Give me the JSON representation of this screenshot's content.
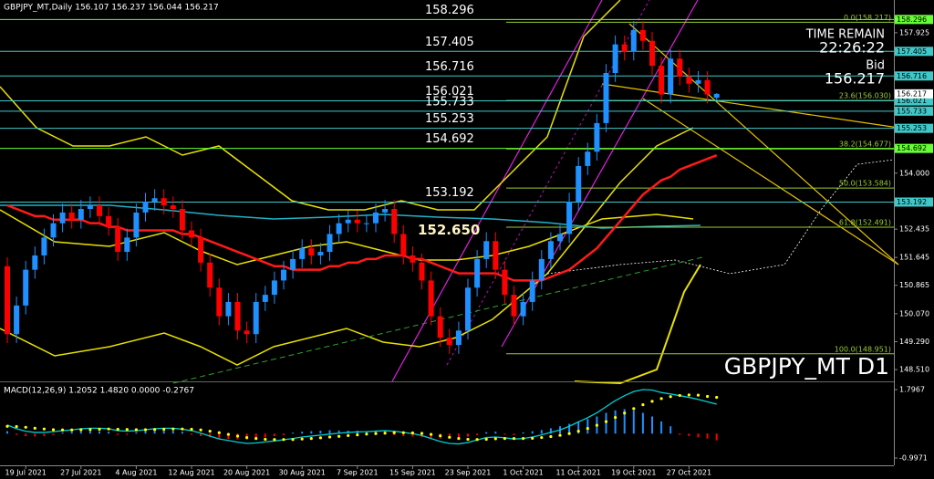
{
  "chart_data": [
    {
      "type": "candlestick",
      "title": "GBPJPY_MT,Daily  156.107 156.237 156.044 156.217",
      "watermark": "GBPJPY_MT D1",
      "time_remain_label": "TIME REMAIN",
      "time_remain": "22:26:22",
      "bid_label": "Bid",
      "bid": 156.217,
      "ylim": [
        148.18,
        158.84
      ],
      "yticks": [
        {
          "value": 157.925,
          "label": "157.925"
        },
        {
          "value": 154.0,
          "label": "154.000"
        },
        {
          "value": 152.435,
          "label": "152.435"
        },
        {
          "value": 151.645,
          "label": "151.645"
        },
        {
          "value": 150.865,
          "label": "150.865"
        },
        {
          "value": 150.07,
          "label": "150.070"
        },
        {
          "value": 149.29,
          "label": "149.290"
        },
        {
          "value": 148.51,
          "label": "148.510"
        }
      ],
      "categories": [
        null,
        null,
        "19 Jul 2021",
        null,
        null,
        null,
        null,
        null,
        "27 Jul 2021",
        null,
        null,
        null,
        null,
        null,
        "4 Aug 2021",
        null,
        null,
        null,
        null,
        null,
        "12 Aug 2021",
        null,
        null,
        null,
        null,
        null,
        "20 Aug 2021",
        null,
        null,
        null,
        null,
        null,
        "30 Aug 2021",
        null,
        null,
        null,
        null,
        null,
        "7 Sep 2021",
        null,
        null,
        null,
        null,
        null,
        "15 Sep 2021",
        null,
        null,
        null,
        null,
        null,
        "23 Sep 2021",
        null,
        null,
        null,
        null,
        null,
        "1 Oct 2021",
        null,
        null,
        null,
        null,
        null,
        "11 Oct 2021",
        null,
        null,
        null,
        null,
        null,
        "19 Oct 2021",
        null,
        null,
        null,
        null,
        null,
        "27 Oct 2021",
        null,
        null,
        null
      ],
      "open": [
        151.4,
        149.5,
        150.3,
        151.3,
        151.7,
        152.2,
        152.6,
        152.9,
        152.7,
        153.0,
        153.1,
        152.8,
        152.5,
        151.8,
        152.2,
        152.9,
        153.2,
        153.3,
        153.1,
        153.0,
        152.4,
        152.2,
        151.5,
        150.8,
        150.0,
        150.4,
        149.6,
        149.5,
        150.4,
        150.6,
        151.0,
        151.3,
        151.6,
        151.9,
        151.7,
        151.8,
        152.3,
        152.6,
        152.7,
        152.6,
        152.6,
        152.9,
        153.0,
        152.3,
        151.7,
        151.5,
        151.0,
        150.0,
        149.4,
        149.2,
        149.6,
        150.8,
        151.6,
        152.1,
        151.3,
        150.6,
        150.0,
        150.4,
        151.0,
        151.6,
        152.1,
        152.3,
        153.2,
        154.2,
        154.6,
        155.4,
        156.8,
        157.6,
        157.4,
        158.0,
        157.7,
        157.0,
        156.2,
        157.2,
        156.7,
        156.5,
        156.6,
        156.107
      ],
      "high": [
        151.65,
        150.55,
        151.55,
        151.95,
        152.45,
        152.85,
        153.15,
        153.15,
        153.25,
        153.35,
        153.35,
        153.05,
        152.75,
        152.45,
        153.15,
        153.45,
        153.55,
        153.55,
        153.35,
        153.25,
        152.65,
        152.45,
        151.75,
        151.05,
        150.65,
        150.65,
        149.85,
        150.65,
        150.85,
        151.25,
        151.55,
        151.85,
        152.15,
        152.15,
        152.05,
        152.55,
        152.85,
        152.95,
        152.95,
        152.85,
        153.15,
        153.25,
        153.25,
        152.55,
        151.95,
        151.75,
        151.25,
        150.25,
        149.65,
        149.85,
        151.05,
        151.85,
        152.35,
        152.35,
        151.55,
        150.85,
        150.65,
        151.25,
        151.85,
        152.35,
        152.55,
        153.45,
        154.45,
        154.85,
        155.65,
        157.05,
        157.85,
        157.85,
        158.25,
        158.25,
        157.95,
        157.25,
        157.45,
        157.45,
        156.95,
        156.85,
        156.85,
        156.237
      ],
      "low": [
        149.25,
        149.25,
        150.05,
        151.05,
        151.45,
        151.95,
        152.35,
        152.45,
        152.45,
        152.75,
        152.55,
        152.25,
        151.55,
        151.55,
        151.95,
        152.65,
        152.95,
        152.85,
        152.75,
        152.15,
        151.95,
        151.25,
        150.55,
        149.75,
        149.75,
        149.35,
        149.25,
        149.25,
        150.15,
        150.35,
        150.75,
        151.05,
        151.35,
        151.45,
        151.45,
        151.55,
        152.05,
        152.35,
        152.35,
        152.35,
        152.35,
        152.65,
        152.05,
        151.45,
        151.25,
        150.75,
        149.75,
        149.15,
        148.95,
        148.95,
        149.35,
        150.55,
        151.35,
        151.05,
        150.35,
        149.75,
        149.75,
        150.15,
        150.75,
        151.35,
        151.85,
        152.05,
        152.95,
        153.95,
        154.35,
        155.15,
        156.55,
        157.15,
        157.15,
        157.45,
        156.75,
        155.95,
        155.95,
        156.45,
        156.25,
        156.25,
        155.95,
        156.044
      ],
      "close": [
        149.5,
        150.3,
        151.3,
        151.7,
        152.2,
        152.6,
        152.9,
        152.7,
        153.0,
        153.1,
        152.8,
        152.5,
        151.8,
        152.2,
        152.9,
        153.2,
        153.3,
        153.1,
        153.0,
        152.4,
        152.2,
        151.5,
        150.8,
        150.0,
        150.4,
        149.6,
        149.5,
        150.4,
        150.6,
        151.0,
        151.3,
        151.6,
        151.9,
        151.7,
        151.8,
        152.3,
        152.6,
        152.7,
        152.6,
        152.6,
        152.9,
        153.0,
        152.3,
        151.7,
        151.5,
        151.0,
        150.0,
        149.4,
        149.2,
        149.6,
        150.8,
        151.6,
        152.1,
        151.3,
        150.6,
        150.0,
        150.4,
        151.0,
        151.6,
        152.1,
        152.3,
        153.2,
        154.2,
        154.6,
        155.4,
        156.8,
        157.6,
        157.4,
        158.0,
        157.7,
        157.0,
        156.2,
        157.2,
        156.7,
        156.5,
        156.6,
        156.2,
        156.217
      ],
      "up_color": "#1e90ff",
      "down_color": "#ff0000",
      "moving_average": {
        "color": "#ff1a1a",
        "values": [
          153.1,
          153.0,
          152.9,
          152.8,
          152.8,
          152.7,
          152.7,
          152.7,
          152.7,
          152.6,
          152.6,
          152.5,
          152.5,
          152.4,
          152.4,
          152.4,
          152.4,
          152.4,
          152.4,
          152.3,
          152.3,
          152.2,
          152.1,
          152.0,
          151.9,
          151.8,
          151.7,
          151.6,
          151.5,
          151.4,
          151.4,
          151.3,
          151.3,
          151.3,
          151.3,
          151.4,
          151.4,
          151.5,
          151.5,
          151.6,
          151.6,
          151.7,
          151.7,
          151.7,
          151.6,
          151.6,
          151.5,
          151.4,
          151.3,
          151.2,
          151.2,
          151.2,
          151.2,
          151.2,
          151.1,
          151.0,
          151.0,
          151.0,
          151.0,
          151.1,
          151.2,
          151.3,
          151.5,
          151.7,
          151.9,
          152.2,
          152.5,
          152.8,
          153.1,
          153.4,
          153.6,
          153.8,
          153.9,
          154.1,
          154.2,
          154.3,
          154.4,
          154.5
        ]
      },
      "levels": [
        158.296,
        157.405,
        156.716,
        156.021,
        155.733,
        155.253,
        154.692,
        153.192
      ],
      "level_colors": [
        "#66ff33",
        "#40c8c8",
        "#40c8c8",
        "#40c8c8",
        "#40c8c8",
        "#40c8c8",
        "#66ff33",
        "#40c8c8"
      ],
      "marker_level": {
        "value": 152.65,
        "label": "152.650"
      },
      "fibo_color": "#9acd32",
      "fibo": [
        {
          "value": 158.217,
          "label": "0.0(158.217)"
        },
        {
          "value": 156.03,
          "label": "23.6(156.030)"
        },
        {
          "value": 154.677,
          "label": "38.2(154.677)"
        },
        {
          "value": 153.584,
          "label": "50.0(153.584)"
        },
        {
          "value": 152.491,
          "label": "61.8(152.491)"
        },
        {
          "value": 148.951,
          "label": "100.0(148.951)"
        }
      ]
    },
    {
      "type": "macd",
      "title": "MACD(12,26,9) 1.2052 1.4820 0.0000 -0.2767",
      "ylim": [
        -1.22,
        2.06
      ],
      "yticks": [
        1.7967,
        -0.9971
      ],
      "histogram": [
        0.1,
        -0.05,
        -0.1,
        -0.12,
        -0.1,
        -0.06,
        0.05,
        0.08,
        0.1,
        0.12,
        0.1,
        0.08,
        -0.05,
        -0.05,
        0.06,
        0.1,
        0.12,
        0.14,
        0.12,
        0.08,
        -0.05,
        -0.1,
        -0.15,
        -0.2,
        -0.22,
        -0.24,
        -0.25,
        -0.2,
        -0.15,
        -0.1,
        -0.06,
        0.04,
        0.08,
        0.1,
        0.12,
        0.14,
        0.13,
        0.12,
        0.12,
        0.1,
        0.1,
        0.08,
        -0.06,
        -0.1,
        -0.12,
        -0.15,
        -0.18,
        -0.2,
        -0.2,
        -0.18,
        -0.12,
        -0.06,
        0.06,
        0.08,
        -0.04,
        -0.06,
        0.05,
        0.1,
        0.15,
        0.22,
        0.3,
        0.4,
        0.5,
        0.6,
        0.7,
        0.85,
        0.95,
        1.0,
        0.95,
        0.85,
        0.7,
        0.5,
        0.3,
        -0.05,
        -0.1,
        -0.15,
        -0.2,
        -0.2767
      ],
      "main": {
        "color": "#00ced1",
        "values": [
          0.35,
          0.2,
          0.1,
          0.05,
          0.05,
          0.08,
          0.12,
          0.15,
          0.2,
          0.22,
          0.22,
          0.2,
          0.12,
          0.1,
          0.12,
          0.16,
          0.2,
          0.22,
          0.22,
          0.18,
          0.12,
          0.02,
          -0.1,
          -0.22,
          -0.28,
          -0.35,
          -0.4,
          -0.38,
          -0.34,
          -0.3,
          -0.25,
          -0.2,
          -0.14,
          -0.1,
          -0.06,
          -0.02,
          0.02,
          0.05,
          0.07,
          0.08,
          0.1,
          0.12,
          0.1,
          0.05,
          0,
          -0.08,
          -0.2,
          -0.32,
          -0.4,
          -0.42,
          -0.36,
          -0.26,
          -0.16,
          -0.14,
          -0.17,
          -0.22,
          -0.2,
          -0.14,
          -0.05,
          0.05,
          0.15,
          0.3,
          0.48,
          0.65,
          0.85,
          1.1,
          1.35,
          1.55,
          1.72,
          1.8,
          1.78,
          1.68,
          1.62,
          1.55,
          1.48,
          1.4,
          1.3,
          1.2052
        ]
      },
      "signal": {
        "color": "#ffff00",
        "values": [
          0.3,
          0.29,
          0.26,
          0.22,
          0.19,
          0.16,
          0.15,
          0.15,
          0.16,
          0.17,
          0.18,
          0.19,
          0.18,
          0.17,
          0.16,
          0.16,
          0.17,
          0.18,
          0.19,
          0.19,
          0.18,
          0.15,
          0.1,
          0.04,
          -0.03,
          -0.1,
          -0.16,
          -0.2,
          -0.23,
          -0.24,
          -0.24,
          -0.24,
          -0.22,
          -0.2,
          -0.17,
          -0.14,
          -0.11,
          -0.08,
          -0.05,
          -0.02,
          0,
          0.02,
          0.04,
          0.04,
          0.03,
          0.01,
          -0.03,
          -0.09,
          -0.15,
          -0.2,
          -0.23,
          -0.24,
          -0.23,
          -0.21,
          -0.2,
          -0.2,
          -0.2,
          -0.19,
          -0.16,
          -0.12,
          -0.07,
          0,
          0.1,
          0.21,
          0.34,
          0.49,
          0.66,
          0.84,
          1.02,
          1.18,
          1.32,
          1.43,
          1.51,
          1.56,
          1.58,
          1.57,
          1.52,
          1.482
        ]
      }
    }
  ]
}
